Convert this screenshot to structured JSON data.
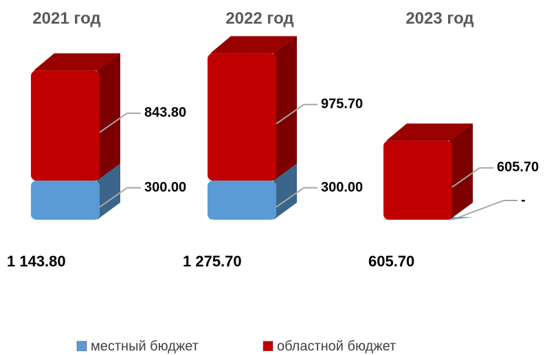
{
  "chart_data": {
    "type": "bar3d_stacked",
    "categories": [
      "2021 год",
      "2022 год",
      "2023 год"
    ],
    "series": [
      {
        "name": "местный бюджет",
        "color": "#5b9bd5",
        "values": [
          300,
          300,
          0
        ],
        "value_labels": [
          "300.00",
          "300.00",
          "-"
        ]
      },
      {
        "name": "областной бюджет",
        "color": "#c00000",
        "values": [
          843.8,
          975.7,
          605.7
        ],
        "value_labels": [
          "843.80",
          "975.70",
          "605.70"
        ]
      }
    ],
    "totals": {
      "values": [
        1143.8,
        1275.7,
        605.7
      ],
      "value_labels": [
        "1 143.80",
        "1 275.70",
        "605.70"
      ]
    },
    "legend": "bottom"
  }
}
